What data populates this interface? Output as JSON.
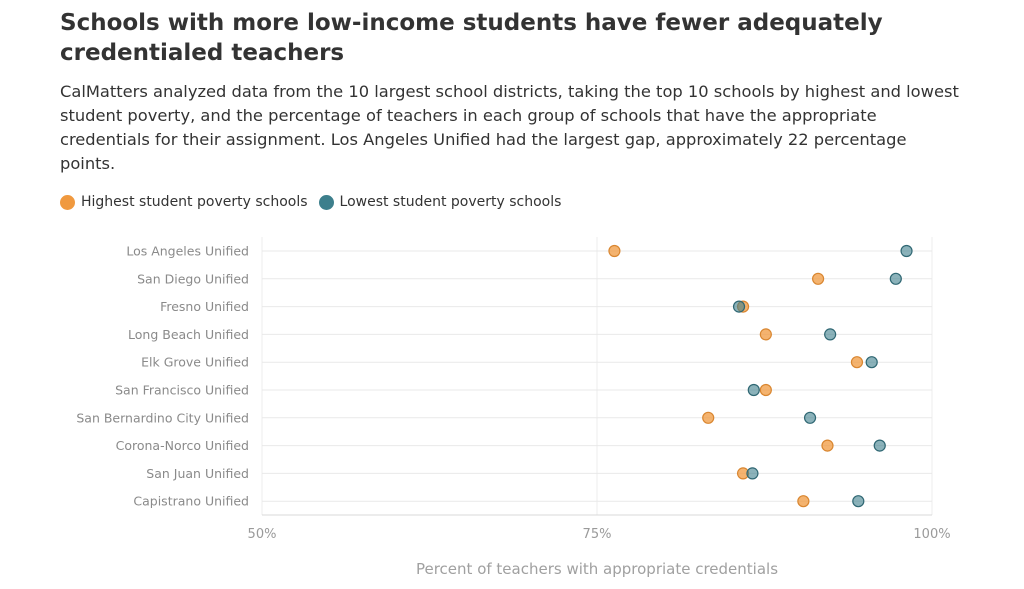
{
  "header": {
    "title": "Schools with more low-income students have fewer adequately credentialed teachers",
    "subtitle": "CalMatters analyzed data from the 10 largest school districts, taking the top 10 schools by highest and lowest student poverty, and the percentage of teachers in each group of schools that have the appropriate credentials for their assignment. Los Angeles Unified had the largest gap, approximately 22 percentage points."
  },
  "legend": {
    "items": [
      {
        "label": "Highest student poverty schools",
        "color": "#f0993f"
      },
      {
        "label": "Lowest student poverty schools",
        "color": "#3d7f8c"
      }
    ]
  },
  "chart_data": {
    "type": "scatter",
    "title": "Schools with more low-income students have fewer adequately credentialed teachers",
    "xlabel": "Percent of teachers with appropriate credentials",
    "ylabel": "",
    "xlim": [
      50,
      100
    ],
    "x_ticks": [
      50,
      75,
      100
    ],
    "x_tick_labels": [
      "50%",
      "75%",
      "100%"
    ],
    "grid": true,
    "legend_position": "top-left",
    "categories": [
      "Los Angeles Unified",
      "San Diego Unified",
      "Fresno Unified",
      "Long Beach Unified",
      "Elk Grove Unified",
      "San Francisco Unified",
      "San Bernardino City Unified",
      "Corona-Norco Unified",
      "San Juan Unified",
      "Capistrano Unified"
    ],
    "series": [
      {
        "name": "Highest student poverty schools",
        "color": "#f0993f",
        "values": [
          76.3,
          91.5,
          85.9,
          87.6,
          94.4,
          87.6,
          83.3,
          92.2,
          85.9,
          90.4
        ]
      },
      {
        "name": "Lowest student poverty schools",
        "color": "#3d7f8c",
        "values": [
          98.1,
          97.3,
          85.6,
          92.4,
          95.5,
          86.7,
          90.9,
          96.1,
          86.6,
          94.5
        ]
      }
    ]
  }
}
